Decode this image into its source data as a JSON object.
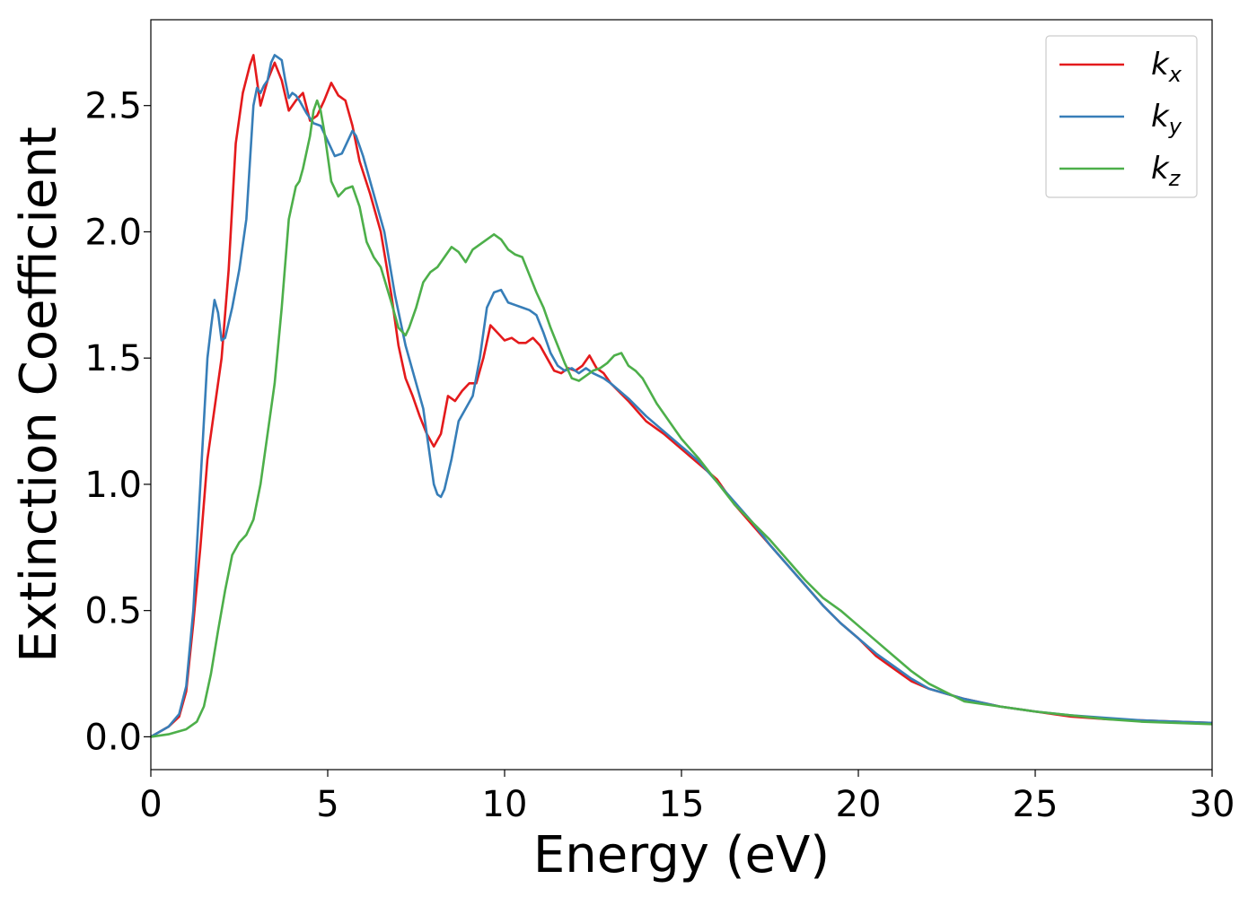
{
  "chart_data": {
    "type": "line",
    "title": "",
    "xlabel": "Energy (eV)",
    "ylabel": "Extinction Coefficient",
    "xlim": [
      0,
      30
    ],
    "ylim": [
      -0.13,
      2.84
    ],
    "xticks": [
      0,
      5,
      10,
      15,
      20,
      25,
      30
    ],
    "xtick_labels": [
      "0",
      "5",
      "10",
      "15",
      "20",
      "25",
      "30"
    ],
    "yticks": [
      0.0,
      0.5,
      1.0,
      1.5,
      2.0,
      2.5
    ],
    "ytick_labels": [
      "0.0",
      "0.5",
      "1.0",
      "1.5",
      "2.0",
      "2.5"
    ],
    "grid": false,
    "legend": {
      "position": "top-right"
    },
    "series": [
      {
        "name": "k",
        "subscript": "x",
        "color": "#e41a1c",
        "x": [
          0,
          0.5,
          0.8,
          1.0,
          1.2,
          1.4,
          1.6,
          1.8,
          2.0,
          2.2,
          2.4,
          2.6,
          2.8,
          2.9,
          3.0,
          3.1,
          3.3,
          3.5,
          3.7,
          3.9,
          4.1,
          4.3,
          4.5,
          4.7,
          4.9,
          5.1,
          5.3,
          5.5,
          5.7,
          5.9,
          6.2,
          6.5,
          6.8,
          7.0,
          7.2,
          7.4,
          7.6,
          7.8,
          8.0,
          8.2,
          8.4,
          8.6,
          8.8,
          9.0,
          9.2,
          9.4,
          9.6,
          9.8,
          10.0,
          10.2,
          10.4,
          10.6,
          10.8,
          11.0,
          11.2,
          11.4,
          11.6,
          11.8,
          12.0,
          12.2,
          12.4,
          12.6,
          12.8,
          13.0,
          13.5,
          14.0,
          14.5,
          15.0,
          15.5,
          16.0,
          16.5,
          17.0,
          17.5,
          18.0,
          18.5,
          19.0,
          19.5,
          20.0,
          20.5,
          21.0,
          21.5,
          22.0,
          23.0,
          24.0,
          25.0,
          26.0,
          27.0,
          28.0,
          29.0,
          30.0
        ],
        "y": [
          0.0,
          0.04,
          0.08,
          0.18,
          0.45,
          0.75,
          1.1,
          1.3,
          1.5,
          1.85,
          2.35,
          2.55,
          2.66,
          2.7,
          2.6,
          2.5,
          2.6,
          2.67,
          2.6,
          2.48,
          2.52,
          2.55,
          2.44,
          2.46,
          2.52,
          2.59,
          2.54,
          2.52,
          2.42,
          2.28,
          2.15,
          2.0,
          1.75,
          1.55,
          1.42,
          1.35,
          1.27,
          1.2,
          1.15,
          1.2,
          1.35,
          1.33,
          1.37,
          1.4,
          1.4,
          1.5,
          1.63,
          1.6,
          1.57,
          1.58,
          1.56,
          1.56,
          1.58,
          1.55,
          1.5,
          1.45,
          1.44,
          1.46,
          1.45,
          1.47,
          1.51,
          1.46,
          1.44,
          1.4,
          1.33,
          1.25,
          1.2,
          1.14,
          1.08,
          1.02,
          0.92,
          0.84,
          0.76,
          0.68,
          0.6,
          0.52,
          0.45,
          0.39,
          0.32,
          0.27,
          0.22,
          0.19,
          0.15,
          0.12,
          0.1,
          0.08,
          0.07,
          0.065,
          0.06,
          0.055
        ]
      },
      {
        "name": "k",
        "subscript": "y",
        "color": "#377eb8",
        "x": [
          0,
          0.5,
          0.8,
          1.0,
          1.2,
          1.4,
          1.6,
          1.7,
          1.8,
          1.9,
          2.0,
          2.1,
          2.3,
          2.5,
          2.7,
          2.9,
          3.0,
          3.1,
          3.2,
          3.3,
          3.4,
          3.5,
          3.6,
          3.7,
          3.8,
          3.9,
          4.0,
          4.1,
          4.2,
          4.4,
          4.6,
          4.8,
          5.0,
          5.2,
          5.4,
          5.6,
          5.7,
          5.8,
          6.0,
          6.3,
          6.6,
          6.9,
          7.2,
          7.5,
          7.7,
          7.9,
          8.0,
          8.1,
          8.2,
          8.3,
          8.5,
          8.7,
          8.9,
          9.1,
          9.3,
          9.5,
          9.7,
          9.9,
          10.1,
          10.3,
          10.5,
          10.7,
          10.9,
          11.1,
          11.3,
          11.5,
          11.7,
          11.9,
          12.1,
          12.3,
          12.5,
          12.8,
          13.0,
          13.5,
          14.0,
          14.5,
          15.0,
          15.5,
          16.0,
          16.5,
          17.0,
          17.5,
          18.0,
          18.5,
          19.0,
          19.5,
          20.0,
          20.5,
          21.0,
          21.5,
          22.0,
          23.0,
          24.0,
          25.0,
          26.0,
          27.0,
          28.0,
          29.0,
          30.0
        ],
        "y": [
          0.0,
          0.04,
          0.09,
          0.2,
          0.5,
          1.0,
          1.5,
          1.62,
          1.73,
          1.68,
          1.57,
          1.58,
          1.7,
          1.85,
          2.05,
          2.5,
          2.57,
          2.55,
          2.58,
          2.6,
          2.67,
          2.7,
          2.69,
          2.68,
          2.6,
          2.53,
          2.55,
          2.54,
          2.52,
          2.47,
          2.43,
          2.42,
          2.36,
          2.3,
          2.31,
          2.37,
          2.4,
          2.38,
          2.3,
          2.15,
          2.0,
          1.75,
          1.55,
          1.4,
          1.3,
          1.1,
          1.0,
          0.96,
          0.95,
          0.98,
          1.1,
          1.25,
          1.3,
          1.35,
          1.5,
          1.7,
          1.76,
          1.77,
          1.72,
          1.71,
          1.7,
          1.69,
          1.67,
          1.6,
          1.52,
          1.47,
          1.45,
          1.46,
          1.44,
          1.46,
          1.44,
          1.42,
          1.4,
          1.34,
          1.27,
          1.21,
          1.15,
          1.09,
          1.01,
          0.93,
          0.85,
          0.76,
          0.68,
          0.6,
          0.52,
          0.45,
          0.39,
          0.33,
          0.28,
          0.23,
          0.19,
          0.15,
          0.12,
          0.1,
          0.085,
          0.075,
          0.065,
          0.06,
          0.055
        ]
      },
      {
        "name": "k",
        "subscript": "z",
        "color": "#4daf4a",
        "x": [
          0,
          0.5,
          1.0,
          1.3,
          1.5,
          1.7,
          1.9,
          2.1,
          2.3,
          2.5,
          2.7,
          2.9,
          3.1,
          3.3,
          3.5,
          3.7,
          3.9,
          4.1,
          4.2,
          4.3,
          4.5,
          4.6,
          4.7,
          4.8,
          4.9,
          5.0,
          5.1,
          5.3,
          5.5,
          5.7,
          5.9,
          6.1,
          6.3,
          6.5,
          6.8,
          7.0,
          7.2,
          7.3,
          7.5,
          7.7,
          7.9,
          8.1,
          8.3,
          8.5,
          8.7,
          8.9,
          9.1,
          9.3,
          9.5,
          9.7,
          9.9,
          10.1,
          10.3,
          10.5,
          10.7,
          10.9,
          11.1,
          11.3,
          11.5,
          11.7,
          11.9,
          12.1,
          12.3,
          12.5,
          12.7,
          12.9,
          13.1,
          13.3,
          13.5,
          13.7,
          13.9,
          14.1,
          14.3,
          14.6,
          15.0,
          15.5,
          16.0,
          16.5,
          17.0,
          17.5,
          18.0,
          18.5,
          19.0,
          19.5,
          20.0,
          20.5,
          21.0,
          21.5,
          22.0,
          23.0,
          24.0,
          25.0,
          26.0,
          27.0,
          28.0,
          29.0,
          30.0
        ],
        "y": [
          0.0,
          0.01,
          0.03,
          0.06,
          0.12,
          0.25,
          0.42,
          0.58,
          0.72,
          0.77,
          0.8,
          0.86,
          1.0,
          1.2,
          1.4,
          1.7,
          2.05,
          2.18,
          2.2,
          2.25,
          2.38,
          2.48,
          2.52,
          2.48,
          2.4,
          2.3,
          2.2,
          2.14,
          2.17,
          2.18,
          2.1,
          1.96,
          1.9,
          1.86,
          1.72,
          1.62,
          1.59,
          1.62,
          1.7,
          1.8,
          1.84,
          1.86,
          1.9,
          1.94,
          1.92,
          1.88,
          1.93,
          1.95,
          1.97,
          1.99,
          1.97,
          1.93,
          1.91,
          1.9,
          1.83,
          1.76,
          1.7,
          1.62,
          1.55,
          1.48,
          1.42,
          1.41,
          1.43,
          1.45,
          1.46,
          1.48,
          1.51,
          1.52,
          1.47,
          1.45,
          1.42,
          1.37,
          1.32,
          1.26,
          1.18,
          1.1,
          1.01,
          0.92,
          0.85,
          0.78,
          0.7,
          0.62,
          0.55,
          0.5,
          0.44,
          0.38,
          0.32,
          0.26,
          0.21,
          0.14,
          0.12,
          0.1,
          0.085,
          0.07,
          0.06,
          0.055,
          0.05
        ]
      }
    ]
  }
}
